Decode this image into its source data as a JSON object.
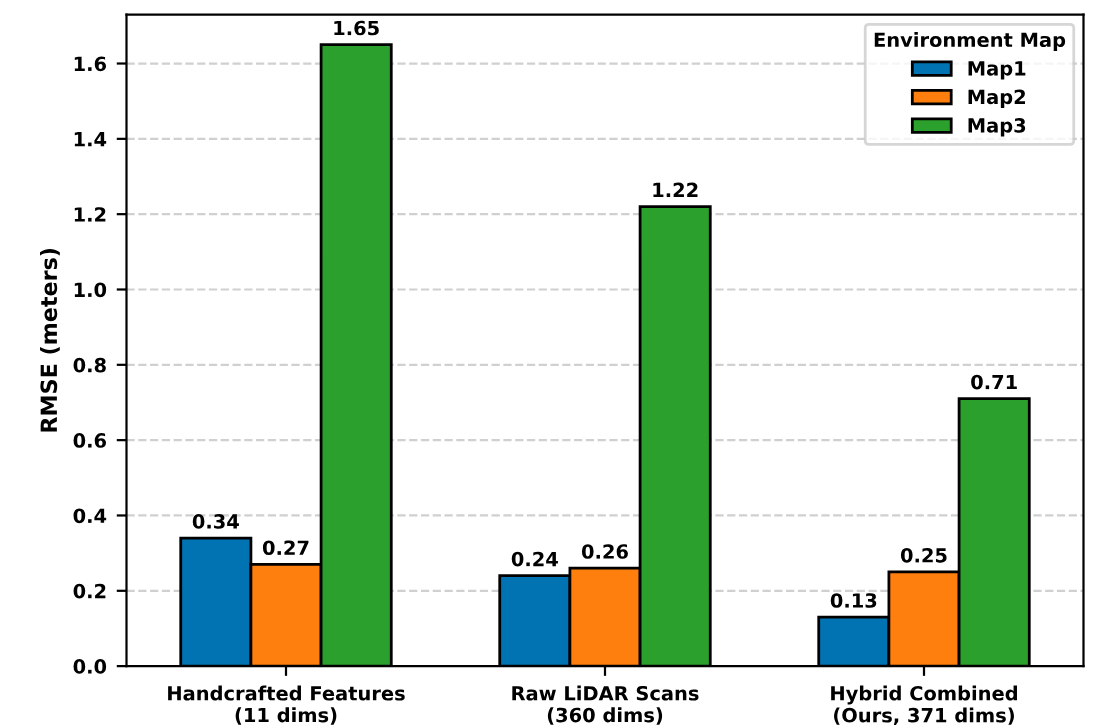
{
  "chart_data": {
    "type": "bar",
    "ylabel": "RMSE (meters)",
    "legend_title": "Environment Map",
    "categories": [
      "Handcrafted Features\n(11 dims)",
      "Raw LiDAR Scans\n(360 dims)",
      "Hybrid Combined\n(Ours, 371 dims)"
    ],
    "series": [
      {
        "name": "Map1",
        "color": "#0173b2",
        "values": [
          0.34,
          0.24,
          0.13
        ]
      },
      {
        "name": "Map2",
        "color": "#ff7f0e",
        "values": [
          0.27,
          0.26,
          0.25
        ]
      },
      {
        "name": "Map3",
        "color": "#2ca02c",
        "values": [
          1.65,
          1.22,
          0.71
        ]
      }
    ],
    "ylim": [
      0,
      1.73
    ],
    "yticks": [
      {
        "value": 0,
        "label": "0.0"
      },
      {
        "value": 0.2,
        "label": "0.2"
      },
      {
        "value": 0.4,
        "label": "0.4"
      },
      {
        "value": 0.6,
        "label": "0.6"
      },
      {
        "value": 0.8,
        "label": "0.8"
      },
      {
        "value": 1.0,
        "label": "1.0"
      },
      {
        "value": 1.2,
        "label": "1.2"
      },
      {
        "value": 1.4,
        "label": "1.4"
      },
      {
        "value": 1.6,
        "label": "1.6"
      }
    ],
    "grid": "y",
    "legend": "top right",
    "data_labels": true
  }
}
